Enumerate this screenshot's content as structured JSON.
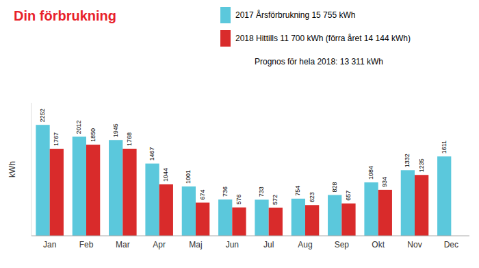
{
  "chart_data": {
    "type": "bar",
    "title": "Din förbrukning",
    "y_label": "kWh",
    "categories": [
      "Jan",
      "Feb",
      "Mar",
      "Apr",
      "Maj",
      "Jun",
      "Jul",
      "Aug",
      "Sep",
      "Okt",
      "Nov",
      "Dec"
    ],
    "series": [
      {
        "name": "2017 Årsförbrukning 15 755 kWh",
        "color": "#5bc8dc",
        "values": [
          2252,
          2012,
          1945,
          1467,
          1001,
          736,
          733,
          754,
          828,
          1084,
          1332,
          1611
        ]
      },
      {
        "name": "2018 Hittills 11 700 kWh (förra året 14 144 kWh)",
        "color": "#d92b2b",
        "values": [
          1767,
          1850,
          1768,
          1044,
          674,
          576,
          572,
          623,
          657,
          934,
          1235,
          null
        ]
      }
    ],
    "annotations": [
      "Prognos för hela 2018: 13 311 kWh"
    ],
    "ylim": [
      0,
      2700
    ],
    "tick_labels": "x",
    "data_labels": true,
    "legend": "top-right",
    "grid": false
  }
}
